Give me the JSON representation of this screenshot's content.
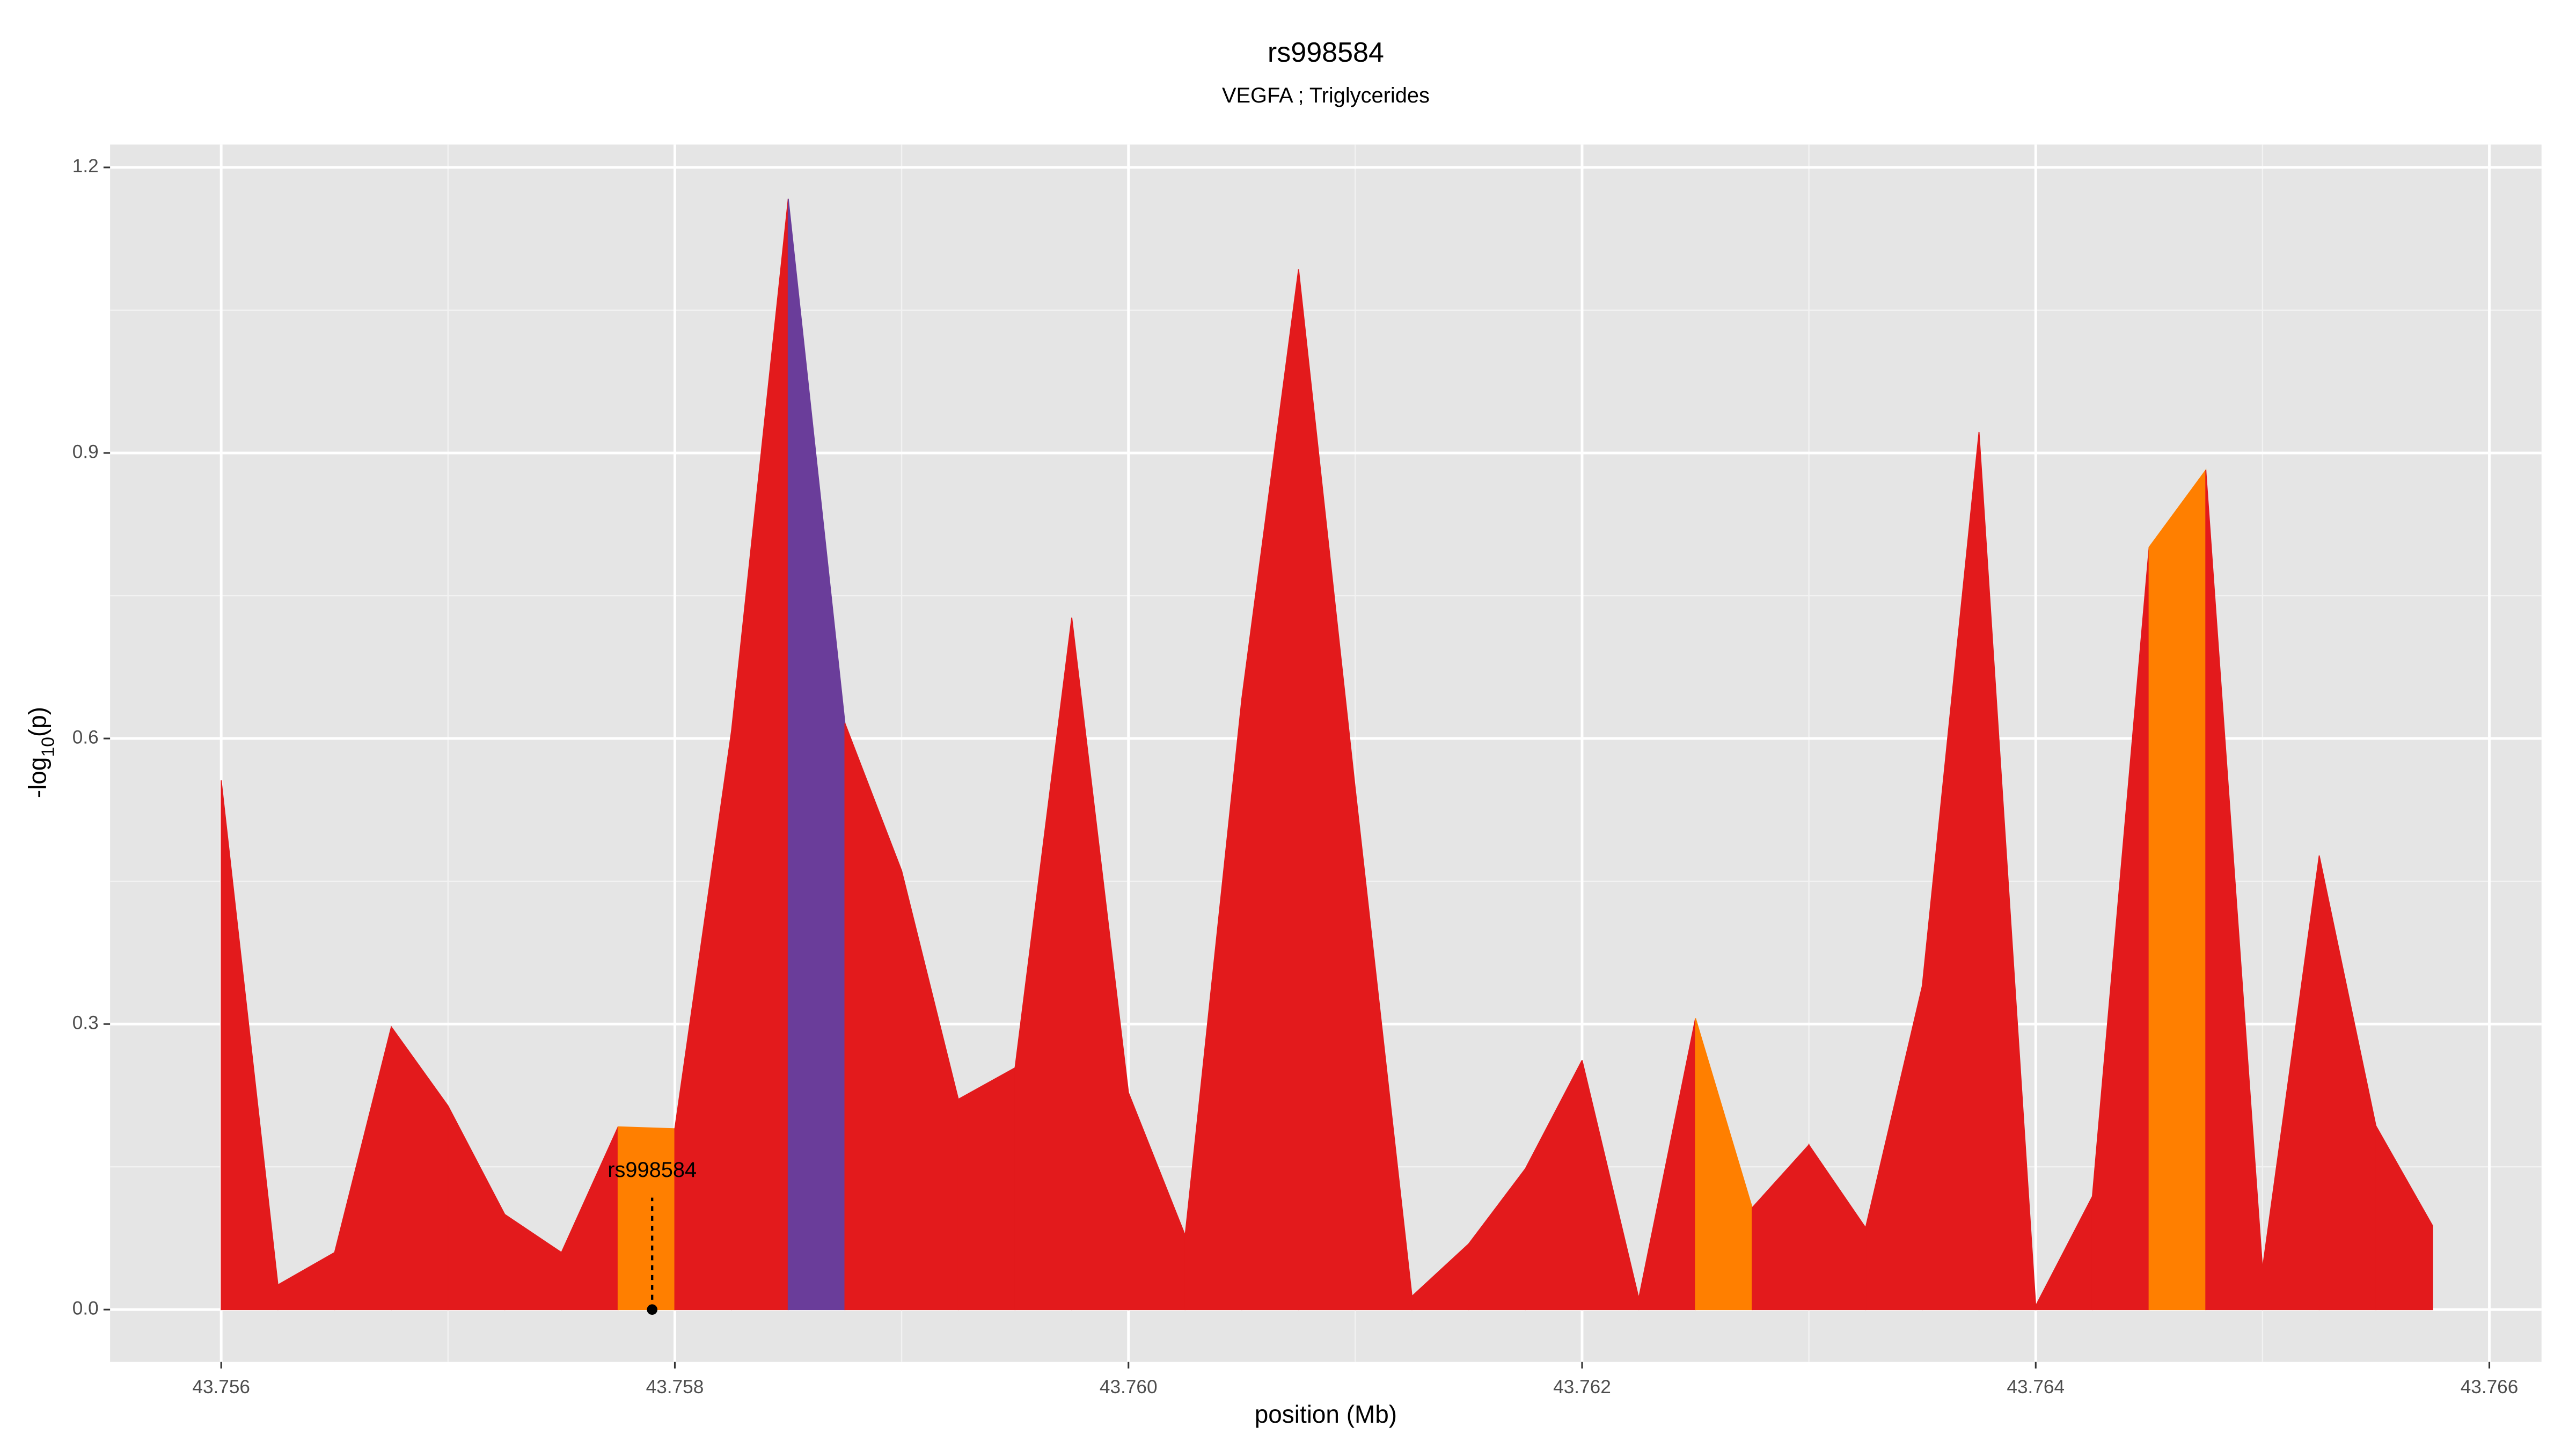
{
  "chart_data": {
    "type": "area",
    "title": "rs998584",
    "subtitle": "VEGFA ; Triglycerides",
    "x_label": "position (Mb)",
    "y_label_parts": [
      "-log",
      "10",
      "(p)"
    ],
    "x": [
      43.756,
      43.75625,
      43.7565,
      43.75675,
      43.757,
      43.75725,
      43.7575,
      43.75775,
      43.758,
      43.75825,
      43.7585,
      43.75875,
      43.759,
      43.75925,
      43.7595,
      43.75975,
      43.76,
      43.76025,
      43.7605,
      43.76075,
      43.761,
      43.76125,
      43.7615,
      43.76175,
      43.762,
      43.76225,
      43.7625,
      43.76275,
      43.763,
      43.76325,
      43.7635,
      43.76375,
      43.764,
      43.76425,
      43.7645,
      43.76475,
      43.765,
      43.76525,
      43.7655,
      43.76575
    ],
    "values": [
      0.556,
      0.026,
      0.06,
      0.297,
      0.214,
      0.1,
      0.06,
      0.192,
      0.19,
      0.608,
      1.167,
      0.616,
      0.461,
      0.221,
      0.254,
      0.727,
      0.228,
      0.078,
      0.642,
      1.093,
      0.547,
      0.014,
      0.069,
      0.148,
      0.262,
      0.012,
      0.306,
      0.107,
      0.173,
      0.086,
      0.34,
      0.922,
      0.004,
      0.119,
      0.801,
      0.882,
      0.043,
      0.477,
      0.193,
      0.088
    ],
    "segment_colors": [
      "#e31a1c",
      "#e31a1c",
      "#e31a1c",
      "#e31a1c",
      "#e31a1c",
      "#e31a1c",
      "#e31a1c",
      "#ff7f00",
      "#e31a1c",
      "#e31a1c",
      "#6a3d9a",
      "#e31a1c",
      "#e31a1c",
      "#e31a1c",
      "#e31a1c",
      "#e31a1c",
      "#e31a1c",
      "#e31a1c",
      "#e31a1c",
      "#e31a1c",
      "#e31a1c",
      "#e31a1c",
      "#e31a1c",
      "#e31a1c",
      "#e31a1c",
      "#e31a1c",
      "#ff7f00",
      "#e31a1c",
      "#e31a1c",
      "#e31a1c",
      "#e31a1c",
      "#e31a1c",
      "#e31a1c",
      "#e31a1c",
      "#ff7f00",
      "#e31a1c",
      "#e31a1c",
      "#e31a1c",
      "#e31a1c"
    ],
    "annotation": {
      "label": "rs998584",
      "x": 43.7579,
      "y": 0
    },
    "xlim": [
      43.75551,
      43.76623
    ],
    "ylim": [
      -0.055,
      1.224
    ],
    "xticks": [
      43.756,
      43.758,
      {
        "value": 43.76,
        "label": "43.760"
      },
      43.762,
      43.764,
      43.766
    ],
    "yticks": [
      {
        "value": 0,
        "label": "0.0"
      },
      0.3,
      0.6,
      0.9,
      1.2
    ],
    "grid": true
  }
}
